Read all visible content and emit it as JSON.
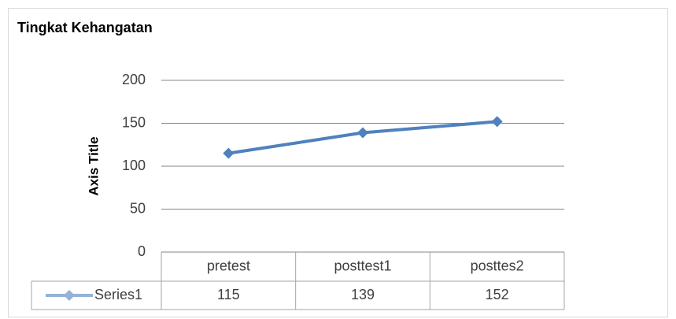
{
  "chart_data": {
    "type": "line",
    "title": "Tingkat Kehangatan",
    "y_label": "Axis Title",
    "categories": [
      "pretest",
      "posttest1",
      "posttes2"
    ],
    "series": [
      {
        "name": "Series1",
        "color": "#4f81bd",
        "values": [
          115,
          139,
          152
        ]
      }
    ],
    "ylim": [
      0,
      200
    ],
    "yticks": [
      0,
      50,
      100,
      150,
      200
    ],
    "grid": true,
    "legend": "data-table"
  }
}
